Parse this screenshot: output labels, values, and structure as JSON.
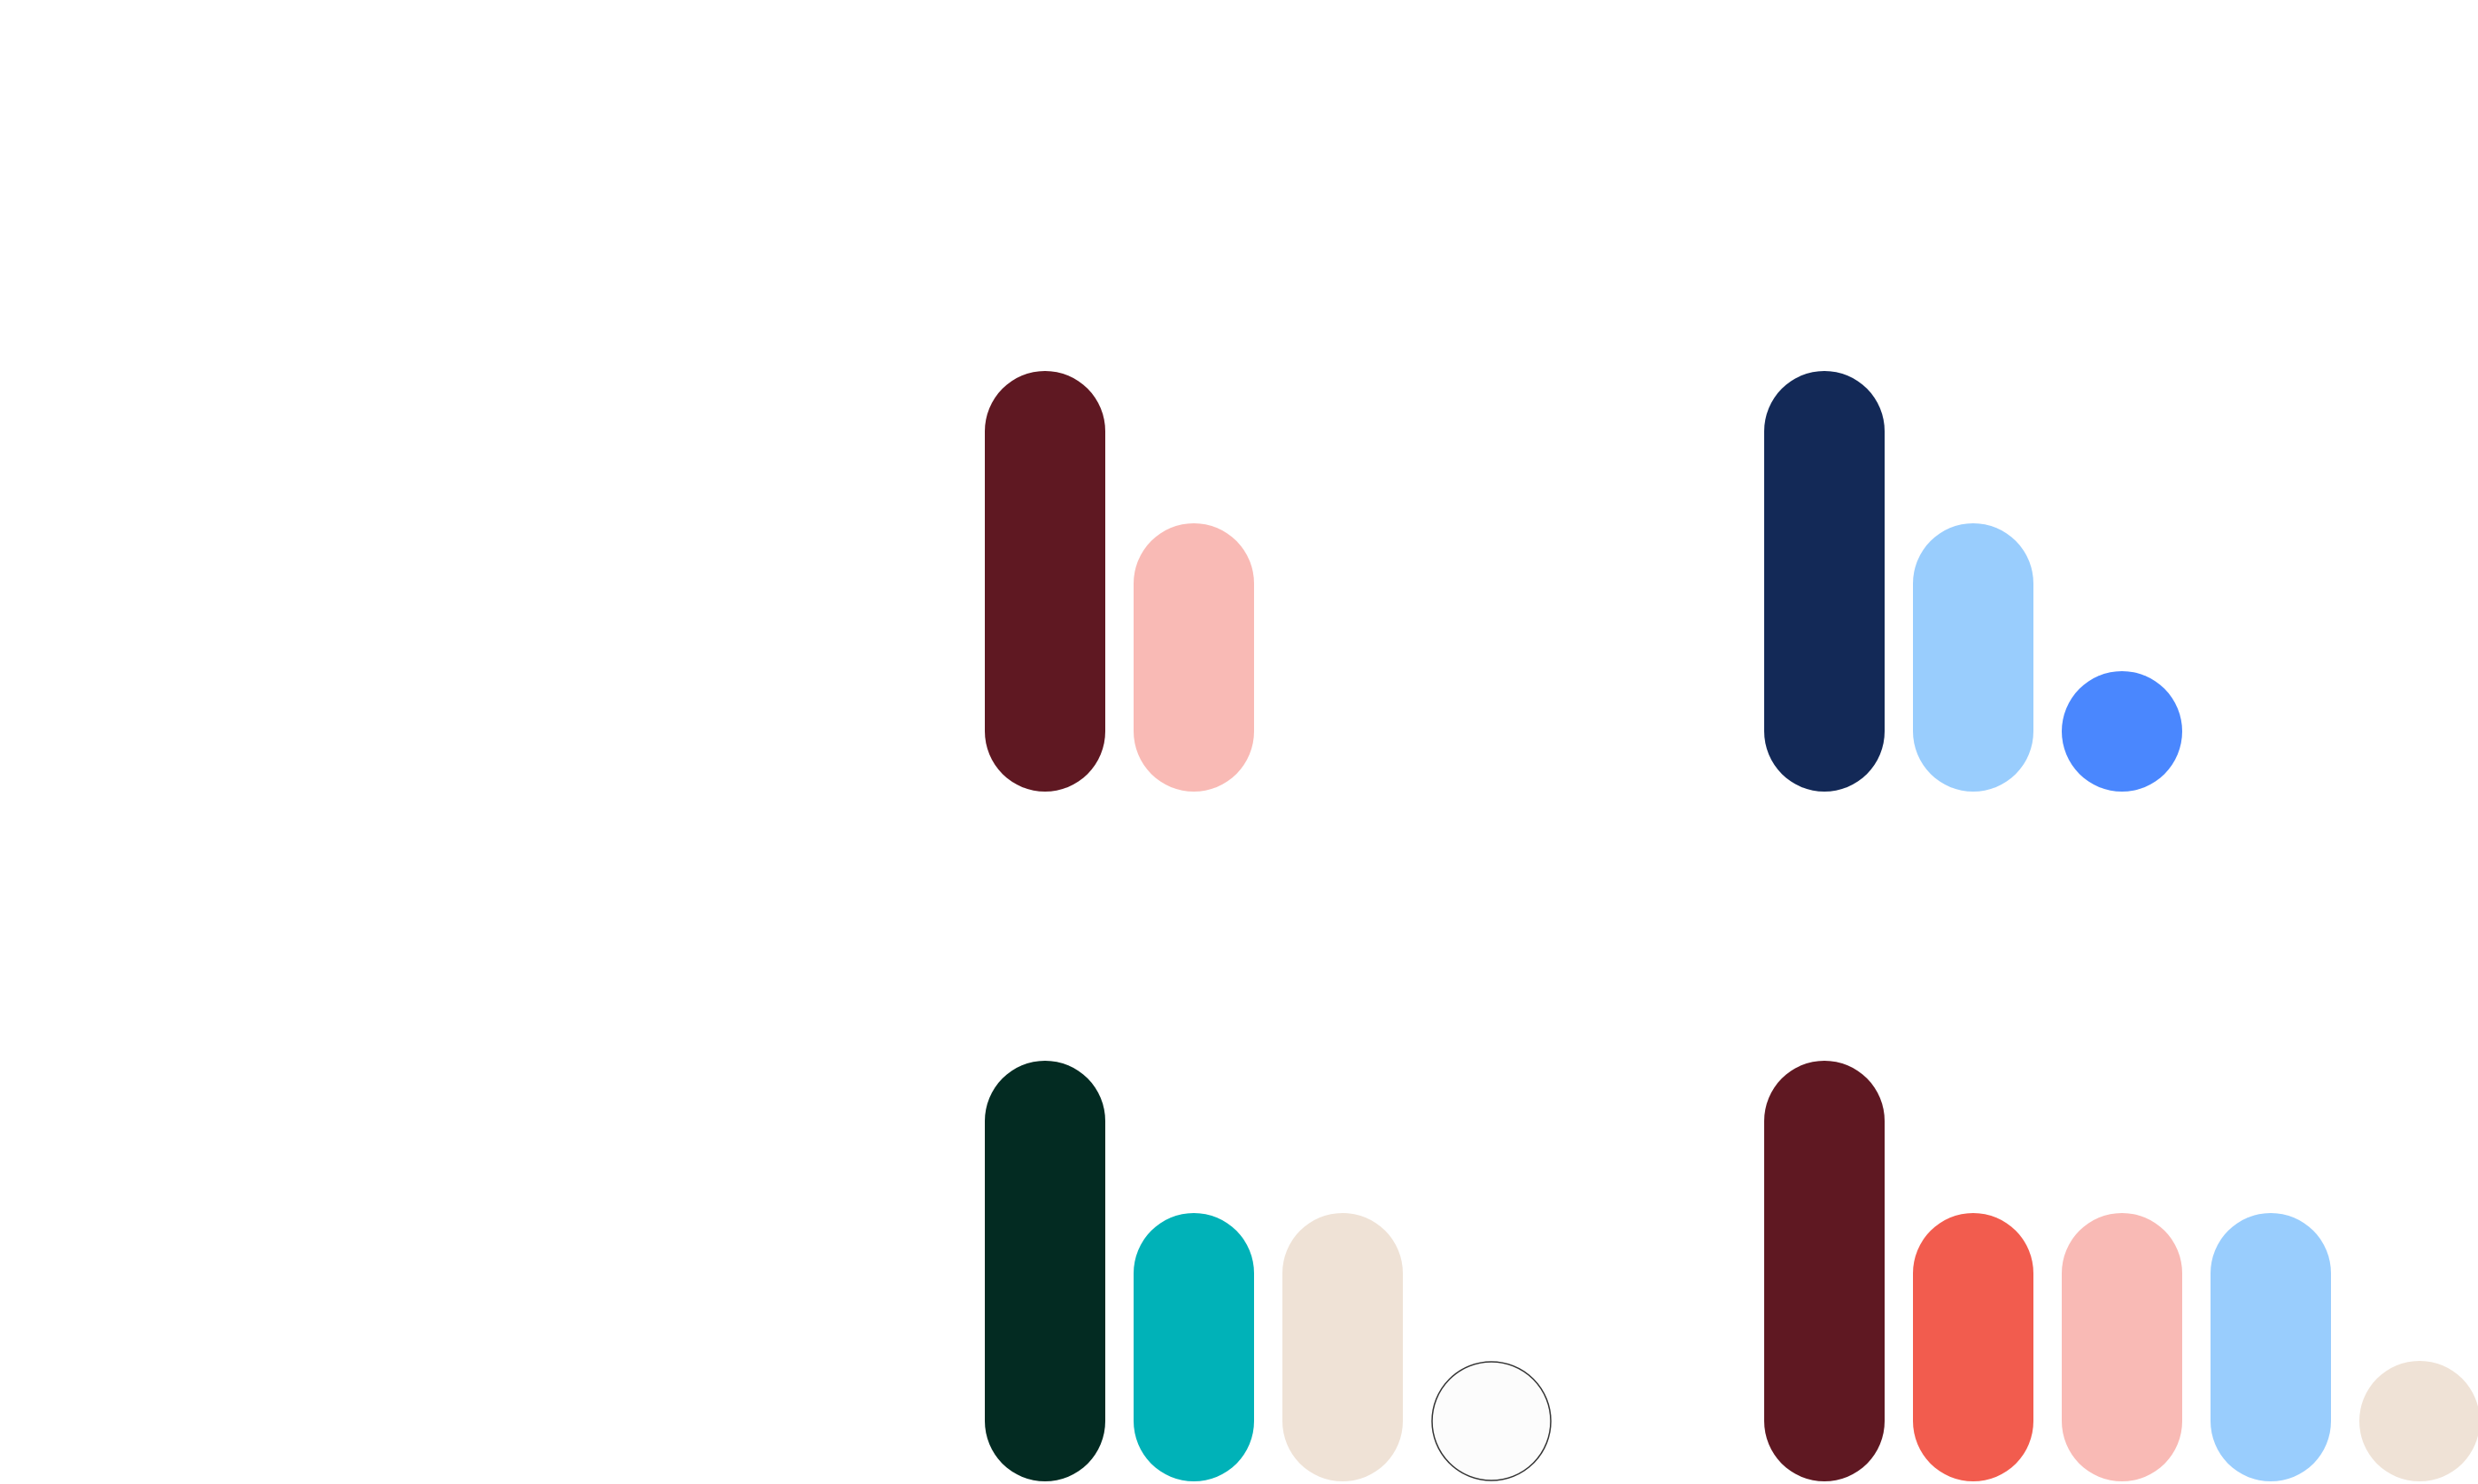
{
  "palettes": [
    {
      "colors": [
        "#5f1822",
        "#f9bab5"
      ]
    },
    {
      "colors": [
        "#132957",
        "#99cdfd",
        "#4a87fe"
      ]
    },
    {
      "colors": [
        "#032b22",
        "#00b2b8",
        "#efe2d6",
        "#fcfcfc"
      ]
    },
    {
      "colors": [
        "#5f1822",
        "#f25c4e",
        "#f9bab5",
        "#99cdfd",
        "#efe2d6"
      ]
    }
  ]
}
